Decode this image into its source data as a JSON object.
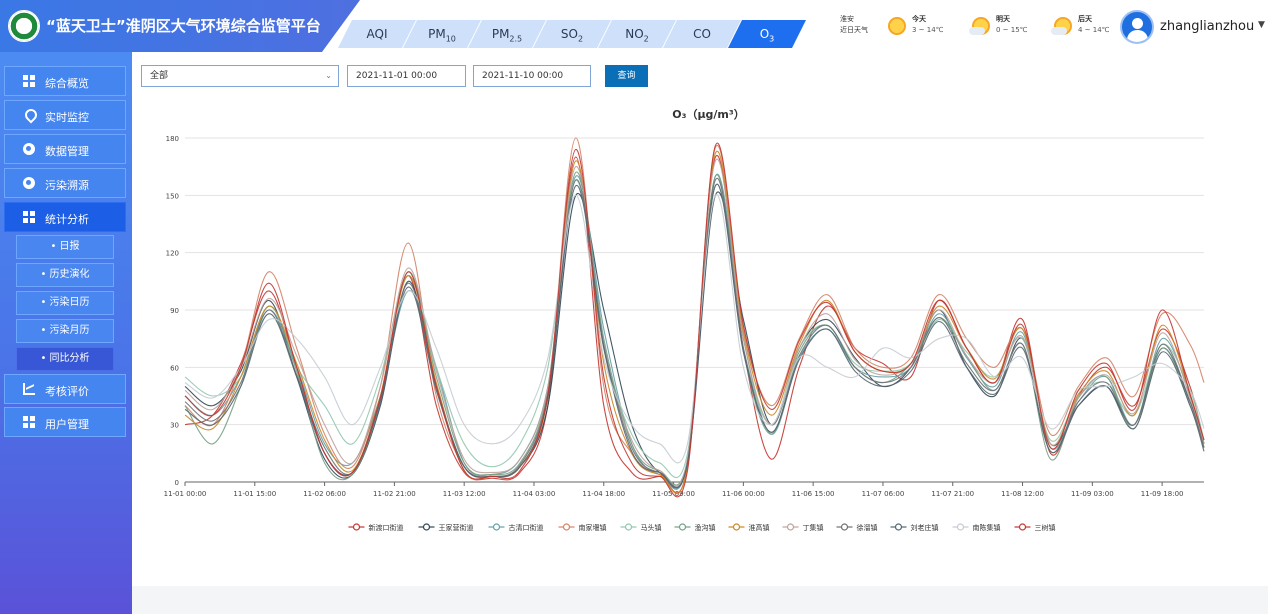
{
  "header": {
    "title": "“蓝天卫士”淮阴区大气环境综合监管平台",
    "tabs": [
      {
        "label": "AQI",
        "active": false
      },
      {
        "label": "PM",
        "sub": "10",
        "active": false
      },
      {
        "label": "PM",
        "sub": "2.5",
        "active": false
      },
      {
        "label": "SO",
        "sub": "2",
        "active": false
      },
      {
        "label": "NO",
        "sub": "2",
        "active": false
      },
      {
        "label": "CO",
        "active": false
      },
      {
        "label": "O",
        "sub": "3",
        "active": true
      }
    ],
    "weather": {
      "city": "淮安",
      "caption": "近日天气",
      "days": [
        {
          "name": "今天",
          "temp": "3 ~ 14℃",
          "icon": "sun-icon"
        },
        {
          "name": "明天",
          "temp": "0 ~ 15℃",
          "icon": "sun-cloud-icon"
        },
        {
          "name": "后天",
          "temp": "4 ~ 14℃",
          "icon": "sun-cloud-icon"
        }
      ]
    },
    "user": {
      "name": "zhanglianzhou"
    }
  },
  "sidebar": {
    "items": [
      {
        "label": "综合概览",
        "icon": "grid-icon",
        "active": false
      },
      {
        "label": "实时监控",
        "icon": "location-pin-icon",
        "active": false
      },
      {
        "label": "数据管理",
        "icon": "globe-icon",
        "active": false
      },
      {
        "label": "污染溯源",
        "icon": "globe-icon",
        "active": false
      },
      {
        "label": "统计分析",
        "icon": "grid-icon",
        "active": true
      },
      {
        "label": "考核评价",
        "icon": "line-chart-icon",
        "active": false
      },
      {
        "label": "用户管理",
        "icon": "grid-icon",
        "active": false
      }
    ],
    "subitems": [
      {
        "label": "• 日报",
        "active": false
      },
      {
        "label": "• 历史演化",
        "active": false
      },
      {
        "label": "• 污染日历",
        "active": false
      },
      {
        "label": "• 污染月历",
        "active": false
      },
      {
        "label": "• 同比分析",
        "active": true
      }
    ]
  },
  "filters": {
    "region": "全部",
    "start": "2021-11-01 00:00",
    "end": "2021-11-10 00:00",
    "query_label": "查询"
  },
  "chart_data": {
    "type": "line",
    "title": "O₃（μg/m³）",
    "ylim": [
      0,
      180
    ],
    "yticks": [
      0,
      30,
      60,
      90,
      120,
      150,
      180
    ],
    "xlim_hours": [
      0,
      219
    ],
    "xticks": [
      "11-01 00:00",
      "11-01 15:00",
      "11-02 06:00",
      "11-02 21:00",
      "11-03 12:00",
      "11-04 03:00",
      "11-04 18:00",
      "11-05 09:00",
      "11-06 00:00",
      "11-06 15:00",
      "11-07 06:00",
      "11-07 21:00",
      "11-08 12:00",
      "11-09 03:00",
      "11-09 18:00"
    ],
    "grid": true,
    "legend_position": "bottom",
    "x_hours": [
      0,
      6,
      12,
      18,
      24,
      30,
      36,
      42,
      48,
      54,
      60,
      66,
      72,
      78,
      84,
      90,
      96,
      102,
      108,
      114,
      120,
      126,
      132,
      138,
      144,
      150,
      156,
      162,
      168,
      174,
      180,
      186,
      192,
      198,
      204,
      210,
      216,
      219
    ],
    "series": [
      {
        "name": "新渡口街道",
        "color": "#c23531",
        "values": [
          30,
          35,
          62,
          100,
          60,
          15,
          5,
          45,
          108,
          40,
          5,
          2,
          5,
          40,
          170,
          40,
          5,
          3,
          8,
          170,
          70,
          12,
          60,
          92,
          70,
          62,
          55,
          95,
          70,
          52,
          85,
          15,
          45,
          60,
          40,
          80,
          50,
          20
        ]
      },
      {
        "name": "王家营街道",
        "color": "#2f4554",
        "values": [
          50,
          40,
          58,
          95,
          55,
          12,
          4,
          40,
          105,
          50,
          8,
          3,
          8,
          40,
          150,
          90,
          30,
          5,
          10,
          150,
          85,
          30,
          70,
          85,
          65,
          50,
          60,
          90,
          60,
          45,
          75,
          20,
          40,
          50,
          30,
          70,
          42,
          20
        ]
      },
      {
        "name": "古清口街道",
        "color": "#61a0a8",
        "values": [
          45,
          35,
          55,
          90,
          60,
          20,
          10,
          45,
          100,
          60,
          10,
          4,
          12,
          50,
          160,
          80,
          20,
          4,
          10,
          160,
          75,
          25,
          65,
          80,
          60,
          55,
          60,
          88,
          65,
          50,
          78,
          18,
          42,
          55,
          30,
          75,
          45,
          18
        ]
      },
      {
        "name": "南家堰镇",
        "color": "#d48265",
        "values": [
          40,
          30,
          60,
          110,
          70,
          25,
          8,
          50,
          125,
          45,
          8,
          3,
          8,
          45,
          180,
          50,
          15,
          4,
          8,
          175,
          80,
          40,
          75,
          98,
          70,
          60,
          65,
          98,
          75,
          60,
          80,
          25,
          50,
          65,
          45,
          88,
          72,
          52
        ]
      },
      {
        "name": "马头镇",
        "color": "#91c7ae",
        "values": [
          55,
          45,
          55,
          88,
          60,
          40,
          20,
          55,
          108,
          60,
          20,
          8,
          20,
          60,
          158,
          70,
          25,
          10,
          15,
          155,
          70,
          30,
          70,
          82,
          62,
          58,
          62,
          85,
          68,
          55,
          75,
          22,
          45,
          52,
          35,
          72,
          48,
          22
        ]
      },
      {
        "name": "渔沟镇",
        "color": "#749f83",
        "values": [
          40,
          20,
          50,
          92,
          58,
          10,
          4,
          42,
          110,
          55,
          10,
          4,
          10,
          48,
          162,
          75,
          20,
          6,
          12,
          160,
          68,
          25,
          68,
          82,
          60,
          52,
          62,
          86,
          66,
          48,
          72,
          12,
          44,
          55,
          28,
          70,
          40,
          18
        ]
      },
      {
        "name": "淮高镇",
        "color": "#ca8622",
        "values": [
          35,
          28,
          55,
          92,
          62,
          22,
          6,
          45,
          108,
          52,
          6,
          3,
          8,
          44,
          168,
          62,
          15,
          4,
          8,
          172,
          78,
          35,
          72,
          95,
          68,
          58,
          62,
          92,
          70,
          54,
          80,
          20,
          46,
          58,
          35,
          82,
          46,
          20
        ]
      },
      {
        "name": "丁集镇",
        "color": "#bda29a",
        "values": [
          48,
          38,
          60,
          96,
          66,
          30,
          10,
          50,
          112,
          58,
          12,
          5,
          12,
          50,
          165,
          70,
          22,
          6,
          12,
          168,
          75,
          30,
          70,
          88,
          64,
          56,
          62,
          90,
          66,
          52,
          76,
          20,
          44,
          56,
          36,
          78,
          44,
          20
        ]
      },
      {
        "name": "徐溜镇",
        "color": "#6e7074",
        "values": [
          42,
          32,
          52,
          90,
          56,
          18,
          5,
          44,
          104,
          50,
          8,
          3,
          9,
          46,
          158,
          72,
          18,
          5,
          10,
          158,
          70,
          26,
          66,
          82,
          60,
          52,
          60,
          86,
          62,
          48,
          72,
          16,
          42,
          52,
          30,
          72,
          42,
          18
        ]
      },
      {
        "name": "刘老庄镇",
        "color": "#546570",
        "values": [
          38,
          30,
          50,
          88,
          55,
          15,
          5,
          42,
          102,
          48,
          8,
          3,
          8,
          44,
          155,
          70,
          16,
          5,
          10,
          155,
          68,
          26,
          64,
          80,
          58,
          50,
          58,
          84,
          60,
          46,
          70,
          16,
          40,
          50,
          28,
          68,
          40,
          16
        ]
      },
      {
        "name": "南陈集镇",
        "color": "#c4ccd3",
        "values": [
          52,
          44,
          60,
          85,
          75,
          55,
          30,
          60,
          100,
          70,
          30,
          20,
          30,
          65,
          150,
          65,
          30,
          20,
          20,
          150,
          60,
          30,
          65,
          60,
          55,
          70,
          65,
          75,
          75,
          55,
          65,
          28,
          48,
          50,
          55,
          62,
          48,
          28
        ]
      },
      {
        "name": "三树镇",
        "color": "#c23531",
        "values": [
          45,
          35,
          60,
          104,
          60,
          15,
          5,
          44,
          110,
          50,
          6,
          3,
          6,
          46,
          174,
          55,
          10,
          3,
          6,
          176,
          82,
          38,
          74,
          94,
          68,
          58,
          62,
          95,
          70,
          52,
          82,
          18,
          48,
          62,
          38,
          90,
          46,
          22
        ]
      }
    ]
  }
}
